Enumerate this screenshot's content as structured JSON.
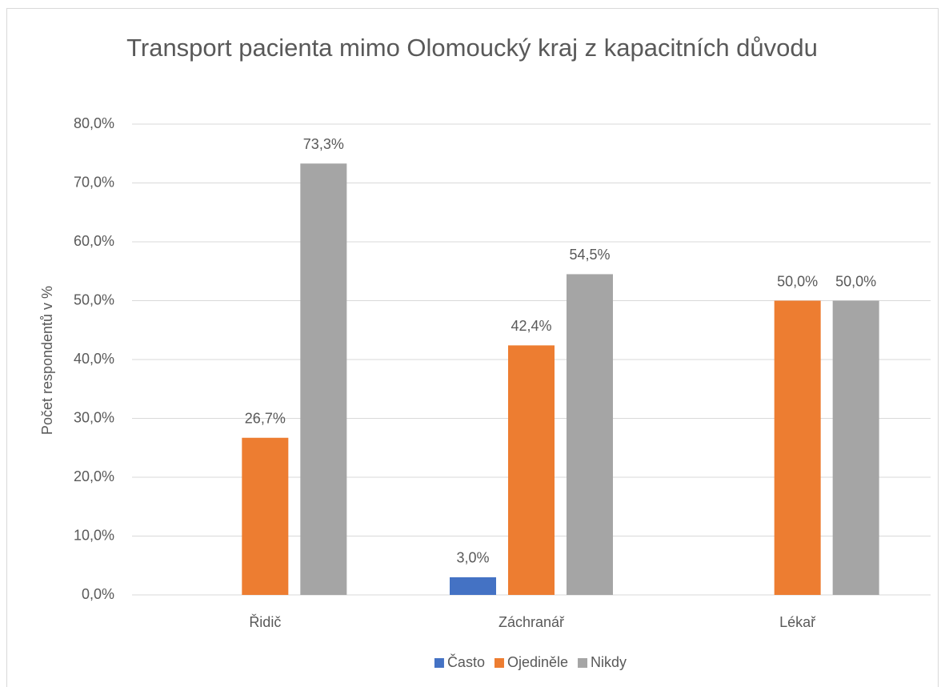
{
  "chart_data": {
    "type": "bar",
    "title": "Transport pacienta mimo Olomoucký kraj z kapacitních důvodu",
    "y_label": "Počet respondentů v %",
    "categories": [
      "Řidič",
      "Záchranář",
      "Lékař"
    ],
    "series": [
      {
        "name": "Často",
        "color": "#4472c4",
        "values": [
          null,
          3.0,
          null
        ],
        "value_labels": [
          null,
          "3,0%",
          null
        ]
      },
      {
        "name": "Ojediněle",
        "color": "#ed7d31",
        "values": [
          26.7,
          42.4,
          50.0
        ],
        "value_labels": [
          "26,7%",
          "42,4%",
          "50,0%"
        ]
      },
      {
        "name": "Nikdy",
        "color": "#a5a5a5",
        "values": [
          73.3,
          54.5,
          50.0
        ],
        "value_labels": [
          "73,3%",
          "54,5%",
          "50,0%"
        ]
      }
    ],
    "ylim": [
      0,
      80
    ],
    "yticks": [
      {
        "value": 0,
        "label": "0,0%"
      },
      {
        "value": 10,
        "label": "10,0%"
      },
      {
        "value": 20,
        "label": "20,0%"
      },
      {
        "value": 30,
        "label": "30,0%"
      },
      {
        "value": 40,
        "label": "40,0%"
      },
      {
        "value": 50,
        "label": "50,0%"
      },
      {
        "value": 60,
        "label": "60,0%"
      },
      {
        "value": 70,
        "label": "70,0%"
      },
      {
        "value": 80,
        "label": "80,0%"
      }
    ],
    "grid": true,
    "legend": "bottom"
  }
}
